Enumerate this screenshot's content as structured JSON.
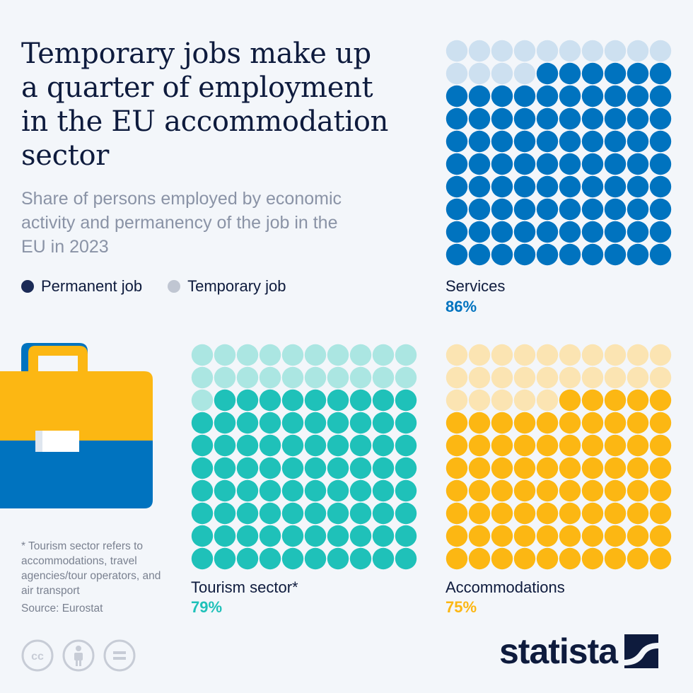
{
  "title": "Temporary jobs make up a quarter of employment in the EU accommodation sector",
  "subtitle": "Share of persons employed by economic activity and permanency of the job in the EU in 2023",
  "legend": {
    "permanent": "Permanent job",
    "temporary": "Temporary job",
    "permanent_color": "#1b2b57",
    "temporary_color": "#c0c6d2"
  },
  "chart_data": [
    {
      "type": "waffle",
      "category": "Services",
      "permanent_pct": 86,
      "temporary_pct": 14,
      "value_label": "86%",
      "color_permanent": "#0073bf",
      "color_temporary": "#cde0f0"
    },
    {
      "type": "waffle",
      "category": "Tourism sector*",
      "permanent_pct": 79,
      "temporary_pct": 21,
      "value_label": "79%",
      "color_permanent": "#1fc1b9",
      "color_temporary": "#abe6e2"
    },
    {
      "type": "waffle",
      "category": "Accommodations",
      "permanent_pct": 75,
      "temporary_pct": 25,
      "value_label": "75%",
      "color_permanent": "#fcb713",
      "color_temporary": "#fbe4b2"
    }
  ],
  "note": "* Tourism sector refers to accommodations, travel agencies/tour operators, and air transport",
  "source": "Source: Eurostat",
  "brand": "statista",
  "icons": [
    "briefcase-icon",
    "cc-icon",
    "attribution-icon",
    "no-derivatives-icon",
    "statista-logo-icon"
  ]
}
